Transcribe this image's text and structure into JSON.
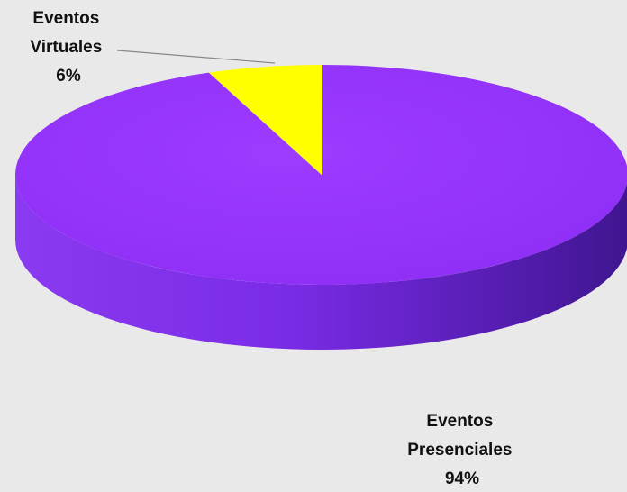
{
  "chart_data": {
    "type": "pie",
    "title": "",
    "slices": [
      {
        "label_line1": "Eventos",
        "label_line2": "Virtuales",
        "percent_label": "6%",
        "value": 6,
        "color": "#ffff00"
      },
      {
        "label_line1": "Eventos",
        "label_line2": "Presenciales",
        "percent_label": "94%",
        "value": 94,
        "color": "#9933ff"
      }
    ],
    "style": "3d",
    "legend": "none"
  },
  "colors": {
    "background": "#e9e9e9",
    "side_dark": "#5a1fb0",
    "leader_line": "#888888"
  }
}
